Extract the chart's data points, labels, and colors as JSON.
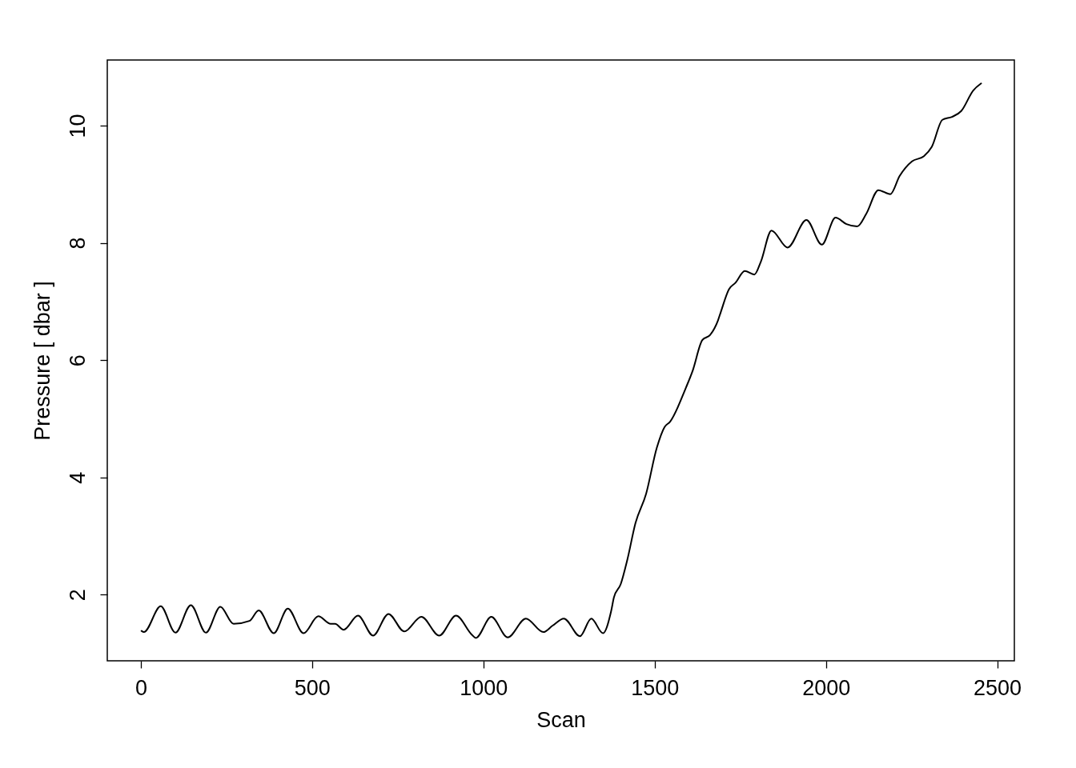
{
  "chart_data": {
    "type": "line",
    "xlabel": "Scan",
    "ylabel": "Pressure [ dbar ]",
    "xlim": [
      -98,
      2550
    ],
    "ylim": [
      0.87,
      11.12
    ],
    "xticks": [
      0,
      500,
      1000,
      1500,
      2000,
      2500
    ],
    "yticks": [
      2,
      4,
      6,
      8,
      10
    ],
    "grid": false,
    "marker": "none",
    "line_style": "solid",
    "series": [
      {
        "color": "#000000",
        "x": [
          2,
          9,
          58,
          101,
          146,
          190,
          232,
          271,
          317,
          344,
          388,
          429,
          475,
          518,
          554,
          567,
          592,
          634,
          678,
          723,
          769,
          819,
          871,
          920,
          967,
          978,
          1023,
          1071,
          1124,
          1175,
          1202,
          1235,
          1282,
          1315,
          1349,
          1373,
          1381,
          1401,
          1420,
          1444,
          1475,
          1506,
          1529,
          1545,
          1592,
          1611,
          1639,
          1662,
          1685,
          1693,
          1717,
          1736,
          1763,
          1791,
          1810,
          1841,
          1888,
          1943,
          1988,
          2028,
          2060,
          2091,
          2118,
          2153,
          2188,
          2215,
          2251,
          2286,
          2309,
          2340,
          2368,
          2395,
          2430,
          2453
        ],
        "values": [
          1.38,
          1.36,
          1.8,
          1.35,
          1.82,
          1.35,
          1.79,
          1.5,
          1.55,
          1.73,
          1.34,
          1.76,
          1.34,
          1.63,
          1.5,
          1.5,
          1.4,
          1.64,
          1.3,
          1.67,
          1.37,
          1.62,
          1.3,
          1.64,
          1.31,
          1.26,
          1.62,
          1.27,
          1.59,
          1.36,
          1.47,
          1.59,
          1.29,
          1.59,
          1.34,
          1.72,
          1.95,
          2.18,
          2.59,
          3.22,
          3.72,
          4.5,
          4.86,
          4.95,
          5.54,
          5.82,
          6.34,
          6.43,
          6.68,
          6.82,
          7.21,
          7.32,
          7.52,
          7.46,
          7.68,
          8.21,
          7.92,
          8.39,
          7.97,
          8.43,
          8.32,
          8.28,
          8.5,
          8.9,
          8.83,
          9.14,
          9.39,
          9.48,
          9.64,
          10.1,
          10.15,
          10.25,
          10.6,
          10.72
        ]
      }
    ]
  }
}
